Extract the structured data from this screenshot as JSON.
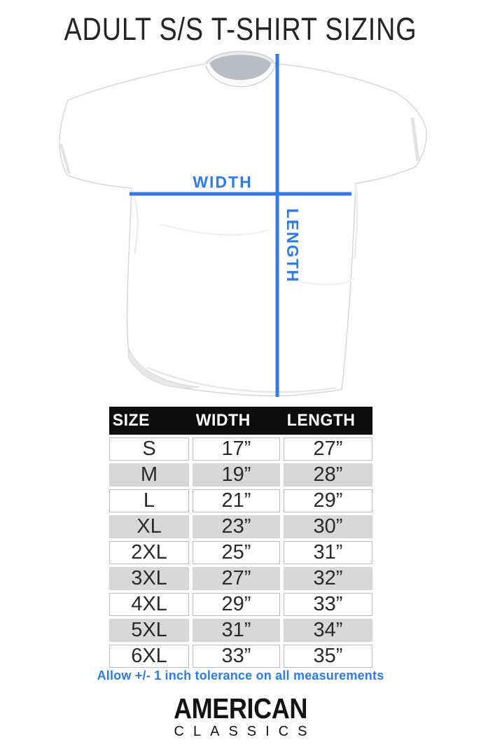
{
  "header": {
    "title": "ADULT S/S T-SHIRT SIZING"
  },
  "diagram": {
    "width_label": "WIDTH",
    "length_label": "LENGTH"
  },
  "size_table": {
    "columns": [
      "SIZE",
      "WIDTH",
      "LENGTH"
    ],
    "rows": [
      {
        "size": "S",
        "width": "17”",
        "length": "27”"
      },
      {
        "size": "M",
        "width": "19”",
        "length": "28”"
      },
      {
        "size": "L",
        "width": "21”",
        "length": "29”"
      },
      {
        "size": "XL",
        "width": "23”",
        "length": "30”"
      },
      {
        "size": "2XL",
        "width": "25”",
        "length": "31”"
      },
      {
        "size": "3XL",
        "width": "27”",
        "length": "32”"
      },
      {
        "size": "4XL",
        "width": "29”",
        "length": "33”"
      },
      {
        "size": "5XL",
        "width": "31”",
        "length": "34”"
      },
      {
        "size": "6XL",
        "width": "33”",
        "length": "35”"
      }
    ]
  },
  "note": {
    "text": "Allow +/- 1 inch tolerance on all measurements"
  },
  "brand": {
    "line1": "AMERICAN",
    "line2": "CLASSICS"
  },
  "colors": {
    "accent_blue": "#2e7bef",
    "table_header_bg": "#0d0d0d",
    "row_alt_gray": "#d8d8d8",
    "text_black": "#252525"
  }
}
